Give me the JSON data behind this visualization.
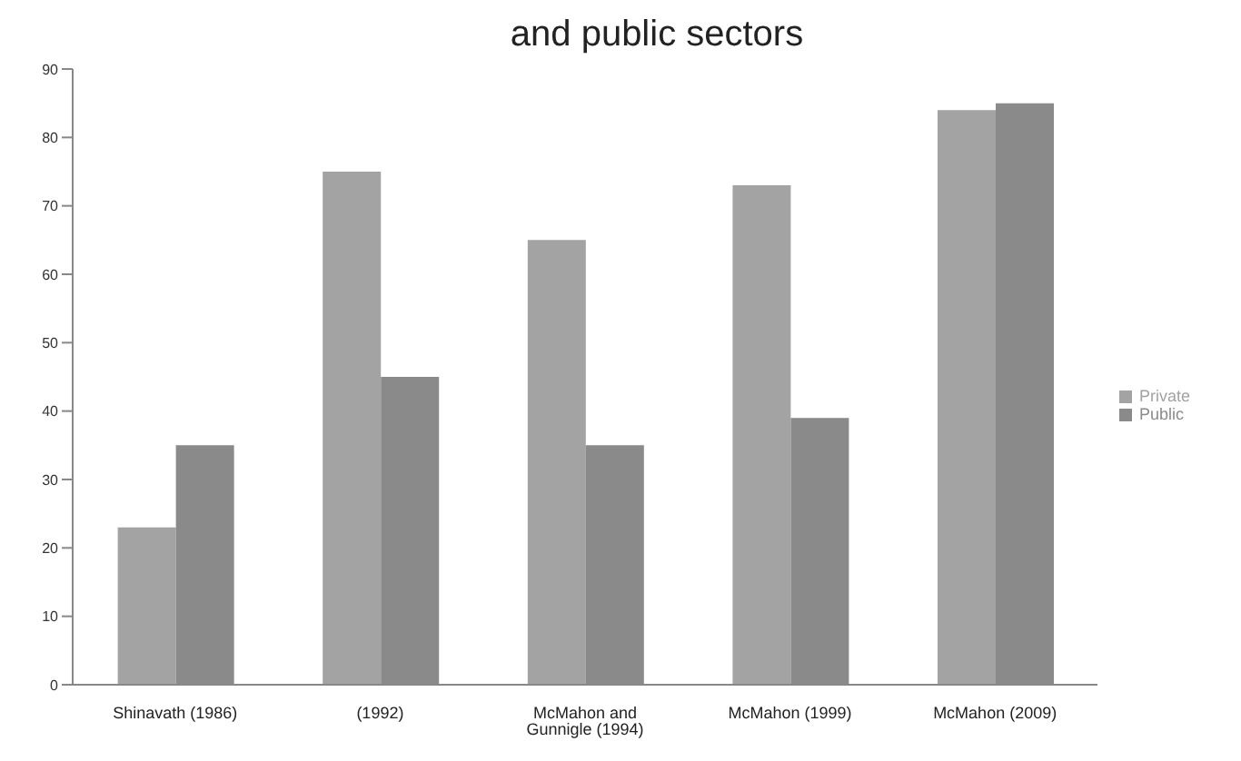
{
  "chart_data": {
    "type": "bar",
    "title": "and public sectors",
    "categories": [
      "Shinavath (1986)",
      "(1992)",
      "McMahon and Gunnigle (1994)",
      "McMahon (1999)",
      "McMahon (2009)"
    ],
    "series": [
      {
        "name": "Private",
        "color": "#a3a3a3",
        "values": [
          23,
          75,
          65,
          73,
          84
        ]
      },
      {
        "name": "Public",
        "color": "#8a8a8a",
        "values": [
          35,
          45,
          35,
          39,
          85
        ]
      }
    ],
    "ylim": [
      0,
      90
    ],
    "yticks": [
      0,
      10,
      20,
      30,
      40,
      50,
      60,
      70,
      80,
      90
    ],
    "grid": false,
    "legend": "right"
  }
}
